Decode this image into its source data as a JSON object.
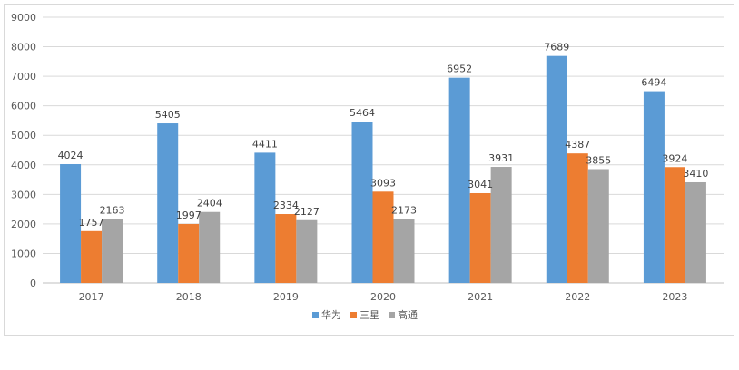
{
  "chart_data": {
    "type": "bar",
    "categories": [
      "2017",
      "2018",
      "2019",
      "2020",
      "2021",
      "2022",
      "2023"
    ],
    "series": [
      {
        "name": "华为",
        "color": "#5b9bd5",
        "values": [
          4024,
          5405,
          4411,
          5464,
          6952,
          7689,
          6494
        ]
      },
      {
        "name": "三星",
        "color": "#ed7d31",
        "values": [
          1757,
          1997,
          2334,
          3093,
          3041,
          4387,
          3924
        ]
      },
      {
        "name": "高通",
        "color": "#a5a5a5",
        "values": [
          2163,
          2404,
          2127,
          2173,
          3931,
          3855,
          3410
        ]
      }
    ],
    "ylim": [
      0,
      9000
    ],
    "yticks": [
      0,
      1000,
      2000,
      3000,
      4000,
      5000,
      6000,
      7000,
      8000,
      9000
    ],
    "grid": true,
    "legend_position": "bottom"
  }
}
